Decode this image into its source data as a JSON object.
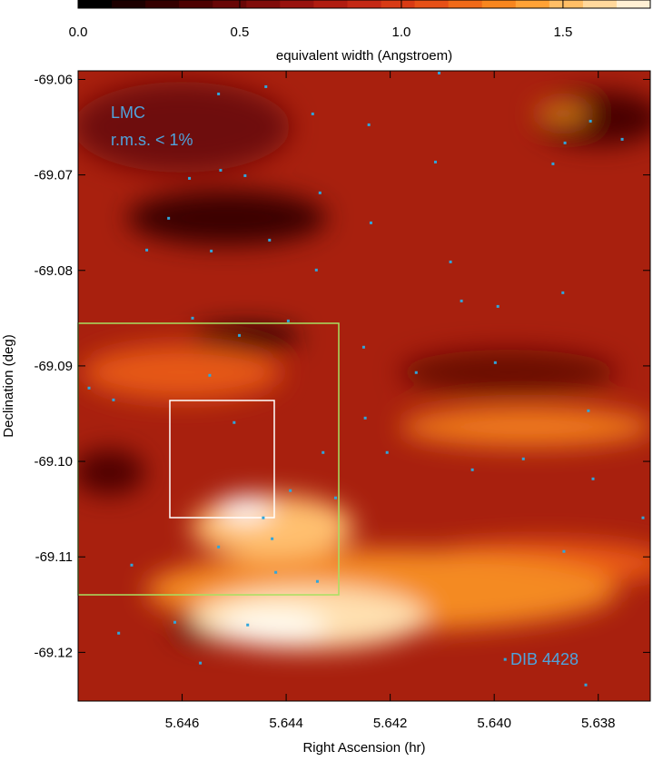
{
  "chart_data": {
    "type": "map",
    "colorbar": {
      "label": "equivalent width (Angstroem)",
      "clim": [
        0,
        1.77
      ],
      "ticks": [
        {
          "value": 0,
          "label": "0.0"
        },
        0.5,
        {
          "value": 1,
          "label": "1.0"
        },
        1.5
      ],
      "colors": [
        "#000000",
        "#1c0000",
        "#340000",
        "#4e0202",
        "#680606",
        "#800c0a",
        "#98120e",
        "#b01c10",
        "#c42814",
        "#d83a14",
        "#e65016",
        "#f06a18",
        "#f8861e",
        "#ffa236",
        "#ffbe66",
        "#ffd89c",
        "#fff0d4"
      ]
    },
    "x_label": "Right Ascension (hr)",
    "y_label": "Declination (deg)",
    "xlim": [
      5.648,
      5.637
    ],
    "ylim": [
      -69.0591,
      -69.1251
    ],
    "xticks": [
      5.646,
      5.644,
      5.642,
      {
        "value": 5.64,
        "label": "5.640"
      },
      5.638
    ],
    "yticks": [
      -69.06,
      -69.07,
      -69.08,
      -69.09,
      {
        "value": -69.1,
        "label": "-69.10"
      },
      -69.11,
      -69.12
    ],
    "annotations": [
      "LMC",
      "r.m.s. < 1%",
      "DIB 4428"
    ],
    "stars": {
      "color": "#2fa6dc",
      "x": [
        5.6453,
        5.64439,
        5.64349,
        5.64241,
        5.64106,
        5.63864,
        5.63815,
        5.63754,
        5.63887,
        5.64113,
        5.64586,
        5.64526,
        5.64479,
        5.64335,
        5.64237,
        5.64626,
        5.64668,
        5.64544,
        5.64432,
        5.64342,
        5.64084,
        5.63993,
        5.64063,
        5.63868,
        5.6458,
        5.6449,
        5.64396,
        5.64251,
        5.6415,
        5.63998,
        5.63819,
        5.64779,
        5.64732,
        5.64547,
        5.645,
        5.64329,
        5.64248,
        5.64206,
        5.64042,
        5.63944,
        5.6381,
        5.63714,
        5.63866,
        5.64697,
        5.6453,
        5.6442,
        5.6434,
        5.64614,
        5.64474,
        5.64722,
        5.64565,
        5.63979,
        5.63824,
        5.64427,
        5.64444,
        5.64392,
        5.64305
      ],
      "y": [
        -69.06152,
        -69.06076,
        -69.06361,
        -69.06475,
        -69.05933,
        -69.06665,
        -69.06437,
        -69.06627,
        -69.06884,
        -69.06865,
        -69.07036,
        -69.06951,
        -69.07008,
        -69.07188,
        -69.07502,
        -69.07454,
        -69.07787,
        -69.07797,
        -69.07683,
        -69.07996,
        -69.07911,
        -69.08377,
        -69.0832,
        -69.08234,
        -69.085,
        -69.08681,
        -69.08529,
        -69.08804,
        -69.0907,
        -69.08966,
        -69.0947,
        -69.09232,
        -69.09356,
        -69.09099,
        -69.09593,
        -69.09907,
        -69.09546,
        -69.09907,
        -69.10088,
        -69.09974,
        -69.10183,
        -69.10591,
        -69.10943,
        -69.11086,
        -69.10896,
        -69.11162,
        -69.11257,
        -69.11685,
        -69.11713,
        -69.11799,
        -69.12112,
        -69.12074,
        -69.12341,
        -69.1081,
        -69.10591,
        -69.10306,
        -69.10382
      ]
    }
  }
}
